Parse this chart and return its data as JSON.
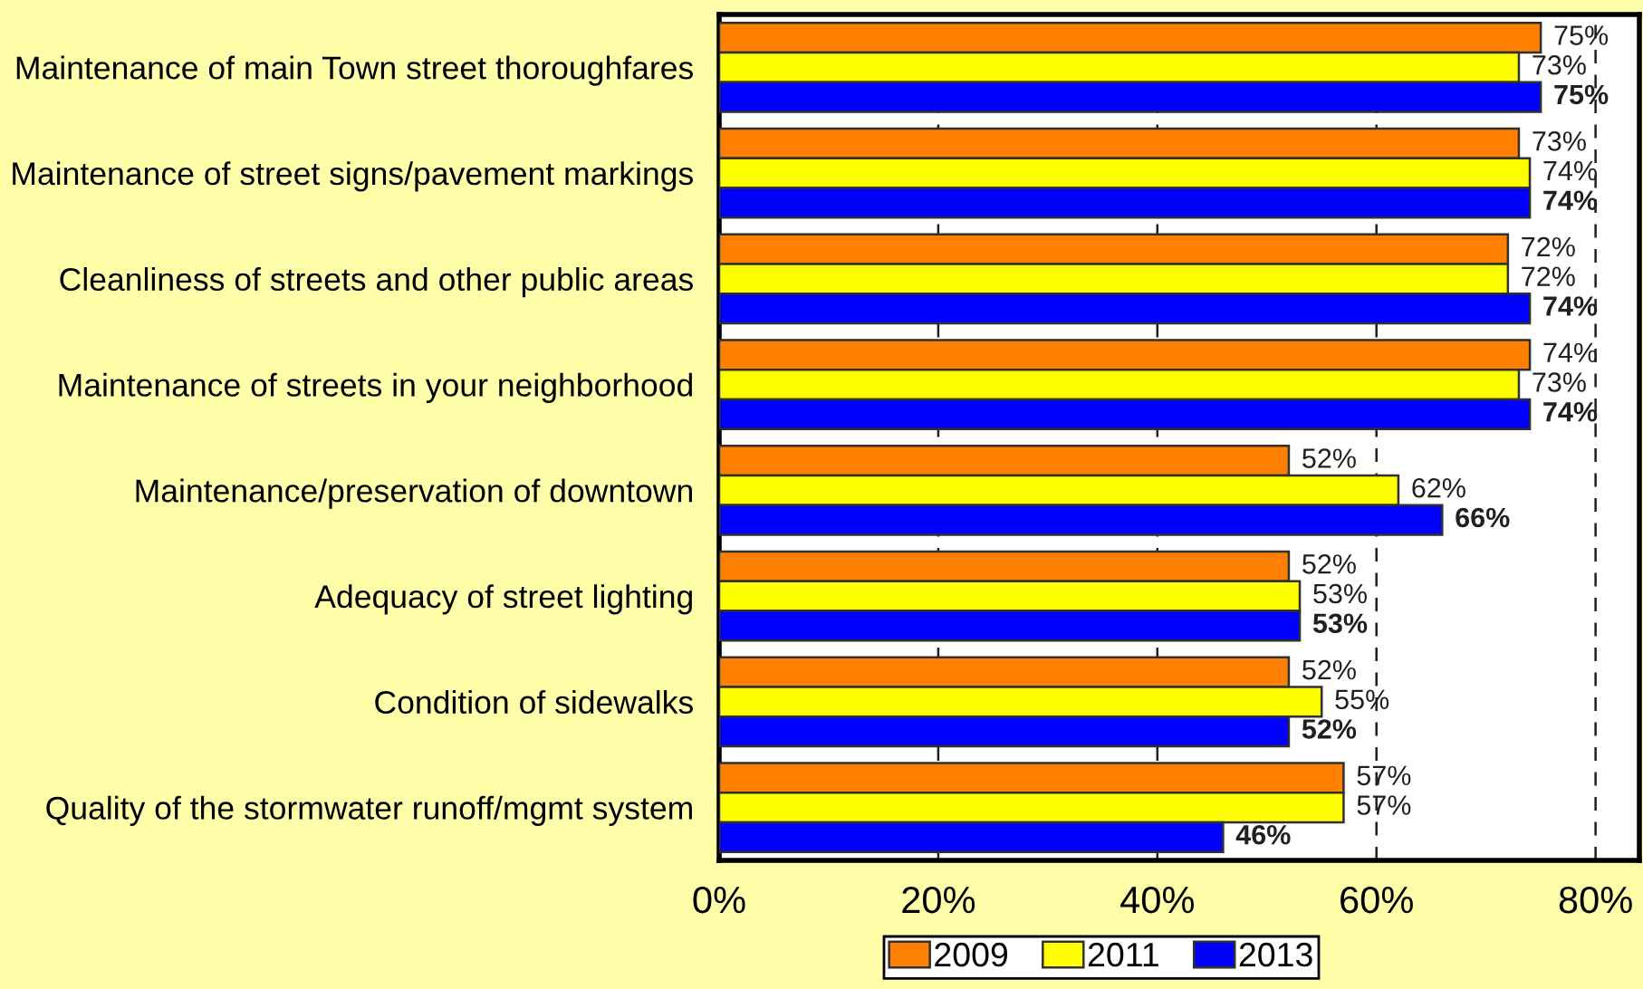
{
  "chart_data": {
    "type": "bar",
    "orientation": "horizontal",
    "categories": [
      "Maintenance of main Town street thoroughfares",
      "Maintenance of street signs/pavement markings",
      "Cleanliness of streets and other public areas",
      "Maintenance of streets in your neighborhood",
      "Maintenance/preservation of downtown",
      "Adequacy of street lighting",
      "Condition of sidewalks",
      "Quality of the stormwater runoff/mgmt system"
    ],
    "series": [
      {
        "name": "2009",
        "color": "#ff8000",
        "values": [
          75,
          73,
          72,
          74,
          52,
          52,
          52,
          57
        ],
        "value_labels": [
          "75%",
          "73%",
          "72%",
          "74%",
          "52%",
          "52%",
          "52%",
          "57%"
        ]
      },
      {
        "name": "2011",
        "color": "#ffff00",
        "values": [
          73,
          74,
          72,
          73,
          62,
          53,
          55,
          57
        ],
        "value_labels": [
          "73%",
          "74%",
          "72%",
          "73%",
          "62%",
          "53%",
          "55%",
          "57%"
        ]
      },
      {
        "name": "2013",
        "color": "#0000ff",
        "values": [
          75,
          74,
          74,
          74,
          66,
          53,
          52,
          46
        ],
        "value_labels": [
          "75%",
          "74%",
          "74%",
          "74%",
          "66%",
          "53%",
          "52%",
          "46%"
        ]
      }
    ],
    "xlim": [
      0,
      84
    ],
    "xticks": [
      {
        "value": 0,
        "label": "0%"
      },
      {
        "value": 20,
        "label": "20%"
      },
      {
        "value": 40,
        "label": "40%"
      },
      {
        "value": 60,
        "label": "60%"
      },
      {
        "value": 80,
        "label": "80%"
      }
    ],
    "grid": "x",
    "legend": "bottom"
  }
}
